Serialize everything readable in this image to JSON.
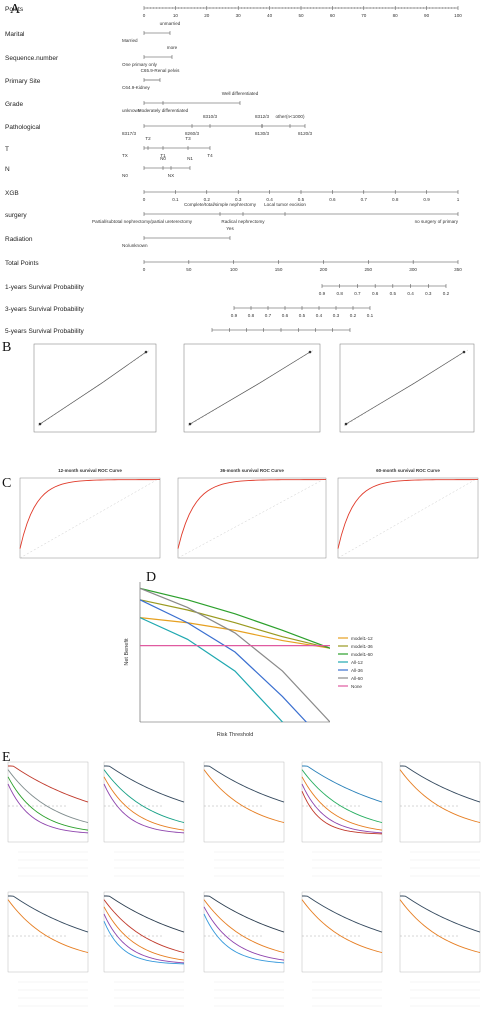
{
  "panel_labels": {
    "A": "A",
    "B": "B",
    "C": "C",
    "D": "D",
    "E": "E"
  },
  "nomogram": {
    "rows": [
      {
        "label": "Points",
        "ticks": [
          "0",
          "10",
          "20",
          "30",
          "40",
          "50",
          "60",
          "70",
          "80",
          "90",
          "100"
        ]
      },
      {
        "label": "Marital",
        "items": [
          "unmarried",
          "Married"
        ]
      },
      {
        "label": "Sequence.number",
        "items": [
          "more",
          "One primary only"
        ]
      },
      {
        "label": "Primary Site",
        "items": [
          "C65.9-Renal pelvis",
          "C64.9-Kidney"
        ]
      },
      {
        "label": "Grade",
        "items": [
          "Well differentiated",
          "unknown",
          "Moderately differentiated"
        ]
      },
      {
        "label": "Pathological",
        "items": [
          "8310/3",
          "8312/3",
          "other(n<1000)",
          "8317/3",
          "8260/3",
          "8130/3",
          "8120/3"
        ]
      },
      {
        "label": "T",
        "items": [
          "T2",
          "T3",
          "TX",
          "T1",
          "T4"
        ]
      },
      {
        "label": "N",
        "items": [
          "N0",
          "N1",
          "N0",
          "NX"
        ]
      },
      {
        "label": "XGB",
        "ticks": [
          "0",
          "0.1",
          "0.2",
          "0.3",
          "0.4",
          "0.5",
          "0.6",
          "0.7",
          "0.8",
          "0.9",
          "1"
        ]
      },
      {
        "label": "surgery",
        "items": [
          "Complete/total/simple nephrectomy",
          "Local tumor excision",
          "Partial/subtotal nephrectomy/partial ureterectomy",
          "Radical nephrectomy",
          "no surgery of primary"
        ]
      },
      {
        "label": "Radiation",
        "items": [
          "Yes",
          "No/unknown"
        ]
      },
      {
        "label": "Total Points",
        "ticks": [
          "0",
          "50",
          "100",
          "150",
          "200",
          "250",
          "300",
          "350"
        ]
      },
      {
        "label": "1-years Survival Probability",
        "ticks": [
          "0.9",
          "0.8",
          "0.7",
          "0.6",
          "0.5",
          "0.4",
          "0.3",
          "0.2"
        ]
      },
      {
        "label": "3-years Survival Probability",
        "ticks": [
          "0.9",
          "0.8",
          "0.7",
          "0.6",
          "0.5",
          "0.4",
          "0.3",
          "0.2",
          "0.1"
        ]
      },
      {
        "label": "5-years Survival Probability",
        "ticks": [
          "0.9",
          "0.8",
          "0.7",
          "0.6",
          "0.5",
          "0.4",
          "0.3",
          "0.2",
          "0.1"
        ]
      }
    ]
  },
  "roc_titles": [
    "12-month survival ROC Curve",
    "36-month survival ROC Curve",
    "60-month survival ROC Curve"
  ],
  "dca": {
    "xlabel": "Risk Threshold",
    "ylabel": "Net Benefit",
    "legend": [
      "model1-12",
      "model1-36",
      "model1-60",
      "All-12",
      "All-36",
      "All-60",
      "None"
    ],
    "colors": [
      "#e6a020",
      "#9a9a20",
      "#2ca02c",
      "#1fa8b0",
      "#3a6fd0",
      "#8a8a8a",
      "#e05aa0"
    ]
  },
  "chart_data": [
    {
      "type": "line",
      "xlabel": "Risk Threshold",
      "ylabel": "Net Benefit",
      "x": [
        0,
        0.25,
        0.5,
        0.75,
        1.0
      ],
      "series": [
        {
          "name": "model1-12",
          "values": [
            0.22,
            0.18,
            0.12,
            0.04,
            -0.02
          ]
        },
        {
          "name": "model1-36",
          "values": [
            0.36,
            0.28,
            0.18,
            0.07,
            -0.02
          ]
        },
        {
          "name": "model1-60",
          "values": [
            0.45,
            0.36,
            0.25,
            0.12,
            -0.02
          ]
        },
        {
          "name": "All-12",
          "values": [
            0.22,
            0.05,
            -0.2,
            -0.6,
            -1.0
          ]
        },
        {
          "name": "All-36",
          "values": [
            0.36,
            0.18,
            -0.05,
            -0.4,
            -0.8
          ]
        },
        {
          "name": "All-60",
          "values": [
            0.45,
            0.3,
            0.1,
            -0.2,
            -0.6
          ]
        },
        {
          "name": "None",
          "values": [
            0,
            0,
            0,
            0,
            0
          ]
        }
      ]
    }
  ]
}
